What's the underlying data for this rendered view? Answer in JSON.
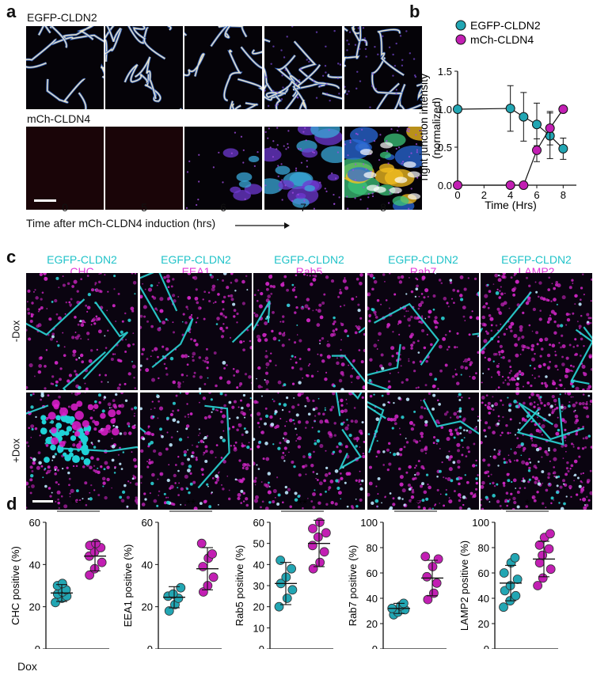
{
  "panel_labels": {
    "a": "a",
    "b": "b",
    "c": "c",
    "d": "d"
  },
  "panel_a": {
    "row1_label": "EGFP-CLDN2",
    "row2_label": "mCh-CLDN4",
    "timepoints": [
      "0",
      "5",
      "6",
      "7",
      "8"
    ],
    "xlabel": "Time after mCh-CLDN4 induction (hrs)"
  },
  "panel_b": {
    "legend": [
      "EGFP-CLDN2",
      "mCh-CLDN4"
    ],
    "colors": {
      "egfp": "#22a6b3",
      "mch": "#c21fb3"
    }
  },
  "chart_data": [
    {
      "type": "line",
      "xlabel": "Time (Hrs)",
      "ylabel": "Tight junction intensity (normalized)",
      "xlim": [
        0,
        9
      ],
      "ylim": [
        0,
        1.5
      ],
      "xticks": [
        "0",
        "2",
        "4",
        "6",
        "8"
      ],
      "yticks": [
        "0.0",
        "0.5",
        "1.0",
        "1.5"
      ],
      "legend_placement": "top",
      "series": [
        {
          "name": "EGFP-CLDN2",
          "x": [
            0,
            4,
            5,
            6,
            7,
            8
          ],
          "y": [
            1.0,
            1.01,
            0.9,
            0.8,
            0.65,
            0.48
          ],
          "err": [
            0,
            0.3,
            0.32,
            0.28,
            0.3,
            0.14
          ]
        },
        {
          "name": "mCh-CLDN4",
          "x": [
            0,
            4,
            5,
            6,
            7,
            8
          ],
          "y": [
            0,
            0,
            0,
            0.46,
            0.75,
            1.0
          ],
          "err": [
            0,
            0,
            0,
            0.15,
            0.22,
            0
          ]
        }
      ]
    },
    {
      "type": "scatter",
      "ylabel": "CHC positive (%)",
      "ylim": [
        0,
        60
      ],
      "yticks": [
        "0",
        "20",
        "40",
        "60"
      ],
      "sig": "***",
      "groups": [
        {
          "mean": 26.5,
          "sd": 4,
          "points": [
            22,
            24,
            25,
            26,
            27,
            28,
            30,
            31
          ]
        },
        {
          "mean": 44,
          "sd": 7,
          "points": [
            35,
            38,
            41,
            44,
            46,
            48,
            49,
            50
          ]
        }
      ]
    },
    {
      "type": "scatter",
      "ylabel": "EEA1 positive (%)",
      "ylim": [
        0,
        60
      ],
      "yticks": [
        "0",
        "20",
        "40",
        "60"
      ],
      "sig": "**",
      "groups": [
        {
          "mean": 24.5,
          "sd": 5,
          "points": [
            18,
            21,
            24,
            25,
            26,
            29
          ]
        },
        {
          "mean": 38,
          "sd": 10,
          "points": [
            27,
            30,
            34,
            39,
            43,
            45,
            50
          ]
        }
      ]
    },
    {
      "type": "scatter",
      "ylabel": "Rab5 positive (%)",
      "ylim": [
        0,
        60
      ],
      "yticks": [
        "0",
        "10",
        "20",
        "30",
        "40",
        "50",
        "60"
      ],
      "sig": "**",
      "groups": [
        {
          "mean": 31,
          "sd": 10,
          "points": [
            20,
            24,
            28,
            31,
            34,
            38,
            42
          ]
        },
        {
          "mean": 50,
          "sd": 11,
          "points": [
            38,
            41,
            46,
            49,
            53,
            55,
            57,
            60
          ]
        }
      ]
    },
    {
      "type": "scatter",
      "ylabel": "Rab7 positive (%)",
      "ylim": [
        0,
        100
      ],
      "yticks": [
        "0",
        "20",
        "40",
        "60",
        "80",
        "100"
      ],
      "sig": "**",
      "groups": [
        {
          "mean": 32,
          "sd": 4,
          "points": [
            27,
            29,
            31,
            32,
            34,
            36
          ]
        },
        {
          "mean": 56,
          "sd": 14,
          "points": [
            39,
            44,
            52,
            57,
            65,
            71,
            73
          ]
        }
      ]
    },
    {
      "type": "scatter",
      "ylabel": "LAMP2 positive (%)",
      "ylim": [
        0,
        100
      ],
      "yticks": [
        "0",
        "20",
        "40",
        "60",
        "80",
        "100"
      ],
      "sig": "*",
      "groups": [
        {
          "mean": 52,
          "sd": 14,
          "points": [
            33,
            38,
            42,
            46,
            50,
            55,
            60,
            68,
            72
          ]
        },
        {
          "mean": 71,
          "sd": 14,
          "points": [
            50,
            56,
            63,
            68,
            74,
            79,
            82,
            88,
            91
          ]
        }
      ]
    }
  ],
  "panel_c": {
    "columns": [
      {
        "top": "EGFP-CLDN2",
        "bottom": "CHC"
      },
      {
        "top": "EGFP-CLDN2",
        "bottom": "EEA1"
      },
      {
        "top": "EGFP-CLDN2",
        "bottom": "Rab5"
      },
      {
        "top": "EGFP-CLDN2",
        "bottom": "Rab7"
      },
      {
        "top": "EGFP-CLDN2",
        "bottom": "LAMP2"
      }
    ],
    "rows": [
      "-Dox",
      "+Dox"
    ]
  },
  "panel_d": {
    "dox_label": "Dox",
    "group_labels": [
      "-",
      "+"
    ],
    "colors": {
      "minus": "#22a6b3",
      "plus": "#c21fb3"
    }
  }
}
